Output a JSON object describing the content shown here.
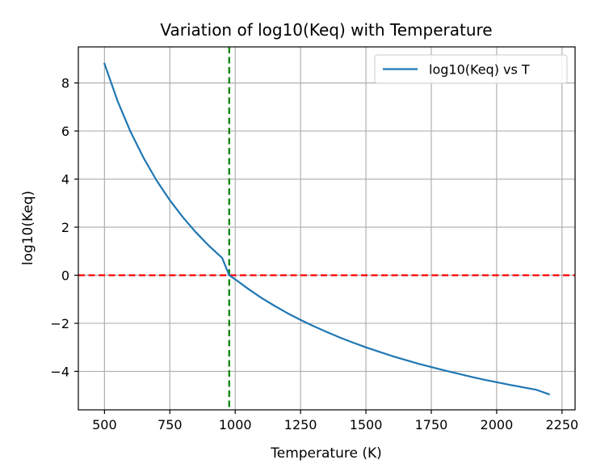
{
  "chart_data": {
    "type": "line",
    "title": "Variation of log10(Keq) with Temperature",
    "xlabel": "Temperature (K)",
    "ylabel": "log10(Keq)",
    "xlim": [
      400,
      2300
    ],
    "ylim": [
      -5.6,
      9.5
    ],
    "grid": true,
    "legend_position": "top-right",
    "xticks": [
      500,
      750,
      1000,
      1250,
      1500,
      1750,
      2000,
      2250
    ],
    "yticks": [
      -4,
      -2,
      0,
      2,
      4,
      6,
      8
    ],
    "ytick_labels": [
      "−4",
      "−2",
      "0",
      "2",
      "4",
      "6",
      "8"
    ],
    "series": [
      {
        "name": "log10(Keq) vs T",
        "color": "#1f77b4",
        "x": [
          500,
          550,
          600,
          650,
          700,
          750,
          800,
          850,
          900,
          950,
          977,
          1000,
          1050,
          1100,
          1150,
          1200,
          1250,
          1300,
          1350,
          1400,
          1450,
          1500,
          1550,
          1600,
          1650,
          1700,
          1750,
          1800,
          1850,
          1900,
          1950,
          2000,
          2050,
          2100,
          2150,
          2200
        ],
        "y": [
          8.8,
          7.25,
          5.96,
          4.87,
          3.93,
          3.12,
          2.41,
          1.78,
          1.22,
          0.72,
          0.0,
          -0.17,
          -0.57,
          -0.94,
          -1.27,
          -1.58,
          -1.86,
          -2.12,
          -2.36,
          -2.59,
          -2.8,
          -3.0,
          -3.18,
          -3.36,
          -3.52,
          -3.68,
          -3.82,
          -3.96,
          -4.09,
          -4.22,
          -4.34,
          -4.45,
          -4.56,
          -4.66,
          -4.76,
          -4.95
        ]
      }
    ],
    "reference_lines": [
      {
        "orientation": "horizontal",
        "value": 0,
        "color": "#ff0000",
        "style": "dashed"
      },
      {
        "orientation": "vertical",
        "value": 977,
        "color": "#008000",
        "style": "dashed"
      }
    ]
  }
}
